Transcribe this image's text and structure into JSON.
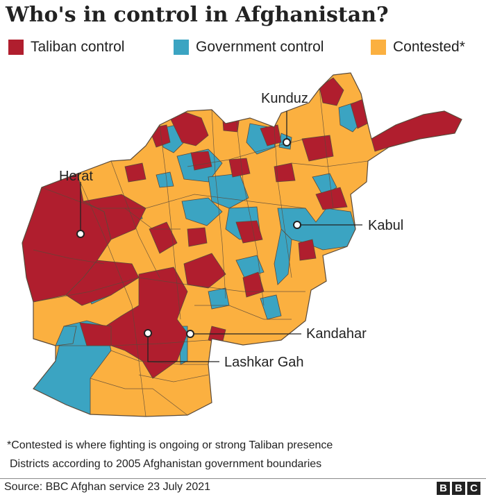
{
  "title": "Who's in control in Afghanistan?",
  "legend": [
    {
      "label": "Taliban control",
      "color": "#b01e2e"
    },
    {
      "label": "Government control",
      "color": "#3ba4c2"
    },
    {
      "label": "Contested*",
      "color": "#fbb040"
    }
  ],
  "colors": {
    "taliban": "#b01e2e",
    "government": "#3ba4c2",
    "contested": "#fbb040",
    "border": "#5a4a3a"
  },
  "cities": [
    {
      "name": "Kunduz"
    },
    {
      "name": "Herat"
    },
    {
      "name": "Kabul"
    },
    {
      "name": "Kandahar"
    },
    {
      "name": "Lashkar Gah"
    }
  ],
  "notes": [
    "*Contested is where fighting is ongoing or strong Taliban presence",
    "Districts according to 2005 Afghanistan government boundaries"
  ],
  "source": "Source: BBC Afghan service 23 July 2021",
  "logo": [
    "B",
    "B",
    "C"
  ]
}
